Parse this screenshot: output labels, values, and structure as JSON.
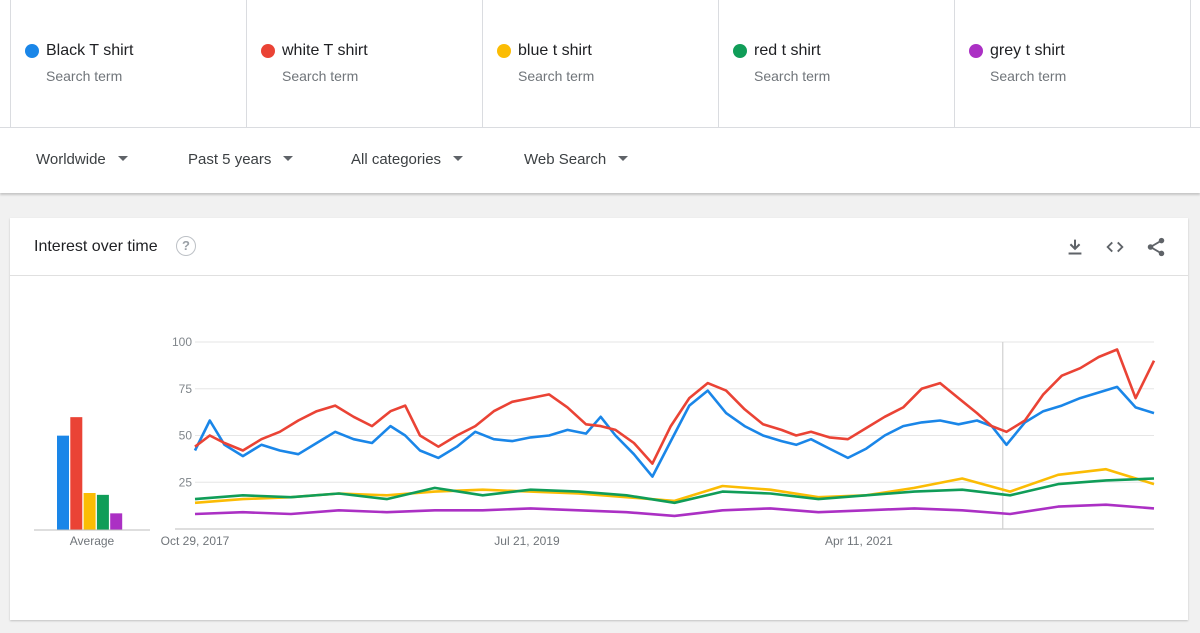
{
  "terms": [
    {
      "name": "Black T shirt",
      "sub": "Search term",
      "color": "#1a86e8"
    },
    {
      "name": "white T shirt",
      "sub": "Search term",
      "color": "#ea4335"
    },
    {
      "name": "blue t shirt",
      "sub": "Search term",
      "color": "#fbbc04"
    },
    {
      "name": "red t shirt",
      "sub": "Search term",
      "color": "#109d58"
    },
    {
      "name": "grey t shirt",
      "sub": "Search term",
      "color": "#ab30c4"
    }
  ],
  "filters": {
    "region": "Worldwide",
    "time": "Past 5 years",
    "category": "All categories",
    "search_type": "Web Search"
  },
  "card": {
    "title": "Interest over time",
    "help": "?",
    "icons": [
      "download-icon",
      "embed-code-icon",
      "share-icon"
    ]
  },
  "chart_data": {
    "type": "line",
    "ylim": [
      0,
      100
    ],
    "yticks": [
      25,
      50,
      75,
      100
    ],
    "x_tick_labels": [
      "Oct 29, 2017",
      "Jul 21, 2019",
      "Apr 11, 2021"
    ],
    "x_start": "2017-10-29",
    "x_end": "2022-10-23",
    "partial_data_from": "2022-01-09",
    "average": {
      "label": "Average",
      "values": [
        51,
        61,
        20,
        19,
        9
      ]
    },
    "series": [
      {
        "name": "Black T shirt",
        "color": "#1a86e8",
        "x": [
          "2017-10-29",
          "2017-11-26",
          "2017-12-24",
          "2018-01-28",
          "2018-03-04",
          "2018-04-08",
          "2018-05-13",
          "2018-06-17",
          "2018-07-22",
          "2018-08-26",
          "2018-09-30",
          "2018-11-04",
          "2018-12-02",
          "2018-12-30",
          "2019-02-03",
          "2019-03-10",
          "2019-04-14",
          "2019-05-19",
          "2019-06-23",
          "2019-07-28",
          "2019-09-01",
          "2019-10-06",
          "2019-11-10",
          "2019-12-08",
          "2020-01-05",
          "2020-02-09",
          "2020-03-15",
          "2020-04-19",
          "2020-05-24",
          "2020-06-28",
          "2020-08-02",
          "2020-09-06",
          "2020-10-11",
          "2020-11-15",
          "2020-12-13",
          "2021-01-10",
          "2021-02-14",
          "2021-03-21",
          "2021-04-25",
          "2021-05-30",
          "2021-07-04",
          "2021-08-08",
          "2021-09-12",
          "2021-10-17",
          "2021-11-21",
          "2021-12-19",
          "2022-01-16",
          "2022-02-20",
          "2022-03-27",
          "2022-05-01",
          "2022-06-05",
          "2022-07-10",
          "2022-08-14",
          "2022-09-18",
          "2022-10-23"
        ],
        "values": [
          42,
          58,
          45,
          39,
          45,
          42,
          40,
          46,
          52,
          48,
          46,
          55,
          50,
          42,
          38,
          44,
          52,
          48,
          47,
          49,
          50,
          53,
          51,
          60,
          50,
          40,
          28,
          47,
          66,
          74,
          62,
          55,
          50,
          47,
          45,
          48,
          43,
          38,
          43,
          50,
          55,
          57,
          58,
          56,
          58,
          55,
          45,
          57,
          63,
          66,
          70,
          73,
          76,
          65,
          62
        ]
      },
      {
        "name": "white T shirt",
        "color": "#ea4335",
        "x": [
          "2017-10-29",
          "2017-11-26",
          "2017-12-24",
          "2018-01-28",
          "2018-03-04",
          "2018-04-08",
          "2018-05-13",
          "2018-06-17",
          "2018-07-22",
          "2018-08-26",
          "2018-09-30",
          "2018-11-04",
          "2018-12-02",
          "2018-12-30",
          "2019-02-03",
          "2019-03-10",
          "2019-04-14",
          "2019-05-19",
          "2019-06-23",
          "2019-07-28",
          "2019-09-01",
          "2019-10-06",
          "2019-11-10",
          "2019-12-08",
          "2020-01-05",
          "2020-02-09",
          "2020-03-15",
          "2020-04-19",
          "2020-05-24",
          "2020-06-28",
          "2020-08-02",
          "2020-09-06",
          "2020-10-11",
          "2020-11-15",
          "2020-12-13",
          "2021-01-10",
          "2021-02-14",
          "2021-03-21",
          "2021-04-25",
          "2021-05-30",
          "2021-07-04",
          "2021-08-08",
          "2021-09-12",
          "2021-10-17",
          "2021-11-21",
          "2021-12-19",
          "2022-01-16",
          "2022-02-20",
          "2022-03-27",
          "2022-05-01",
          "2022-06-05",
          "2022-07-10",
          "2022-08-14",
          "2022-09-18",
          "2022-10-23"
        ],
        "values": [
          44,
          50,
          46,
          42,
          48,
          52,
          58,
          63,
          66,
          60,
          55,
          63,
          66,
          50,
          44,
          50,
          55,
          63,
          68,
          70,
          72,
          65,
          56,
          55,
          53,
          46,
          35,
          55,
          70,
          78,
          74,
          64,
          56,
          53,
          50,
          52,
          49,
          48,
          54,
          60,
          65,
          75,
          78,
          70,
          62,
          55,
          52,
          58,
          72,
          82,
          86,
          92,
          96,
          70,
          90
        ]
      },
      {
        "name": "blue t shirt",
        "color": "#fbbc04",
        "x": [
          "2017-10-29",
          "2018-01-28",
          "2018-04-29",
          "2018-07-29",
          "2018-10-28",
          "2019-01-27",
          "2019-04-28",
          "2019-07-28",
          "2019-10-27",
          "2020-01-26",
          "2020-04-26",
          "2020-07-26",
          "2020-10-25",
          "2021-01-24",
          "2021-04-25",
          "2021-07-25",
          "2021-10-24",
          "2022-01-23",
          "2022-04-24",
          "2022-07-24",
          "2022-10-23"
        ],
        "values": [
          14,
          16,
          17,
          19,
          18,
          20,
          21,
          20,
          19,
          17,
          15,
          23,
          21,
          17,
          18,
          22,
          27,
          20,
          29,
          32,
          24
        ]
      },
      {
        "name": "red t shirt",
        "color": "#109d58",
        "x": [
          "2017-10-29",
          "2018-01-28",
          "2018-04-29",
          "2018-07-29",
          "2018-10-28",
          "2019-01-27",
          "2019-04-28",
          "2019-07-28",
          "2019-10-27",
          "2020-01-26",
          "2020-04-26",
          "2020-07-26",
          "2020-10-25",
          "2021-01-24",
          "2021-04-25",
          "2021-07-25",
          "2021-10-24",
          "2022-01-23",
          "2022-04-24",
          "2022-07-24",
          "2022-10-23"
        ],
        "values": [
          16,
          18,
          17,
          19,
          16,
          22,
          18,
          21,
          20,
          18,
          14,
          20,
          19,
          16,
          18,
          20,
          21,
          18,
          24,
          26,
          27
        ]
      },
      {
        "name": "grey t shirt",
        "color": "#ab30c4",
        "x": [
          "2017-10-29",
          "2018-01-28",
          "2018-04-29",
          "2018-07-29",
          "2018-10-28",
          "2019-01-27",
          "2019-04-28",
          "2019-07-28",
          "2019-10-27",
          "2020-01-26",
          "2020-04-26",
          "2020-07-26",
          "2020-10-25",
          "2021-01-24",
          "2021-04-25",
          "2021-07-25",
          "2021-10-24",
          "2022-01-23",
          "2022-04-24",
          "2022-07-24",
          "2022-10-23"
        ],
        "values": [
          8,
          9,
          8,
          10,
          9,
          10,
          10,
          11,
          10,
          9,
          7,
          10,
          11,
          9,
          10,
          11,
          10,
          8,
          12,
          13,
          11
        ]
      }
    ]
  }
}
